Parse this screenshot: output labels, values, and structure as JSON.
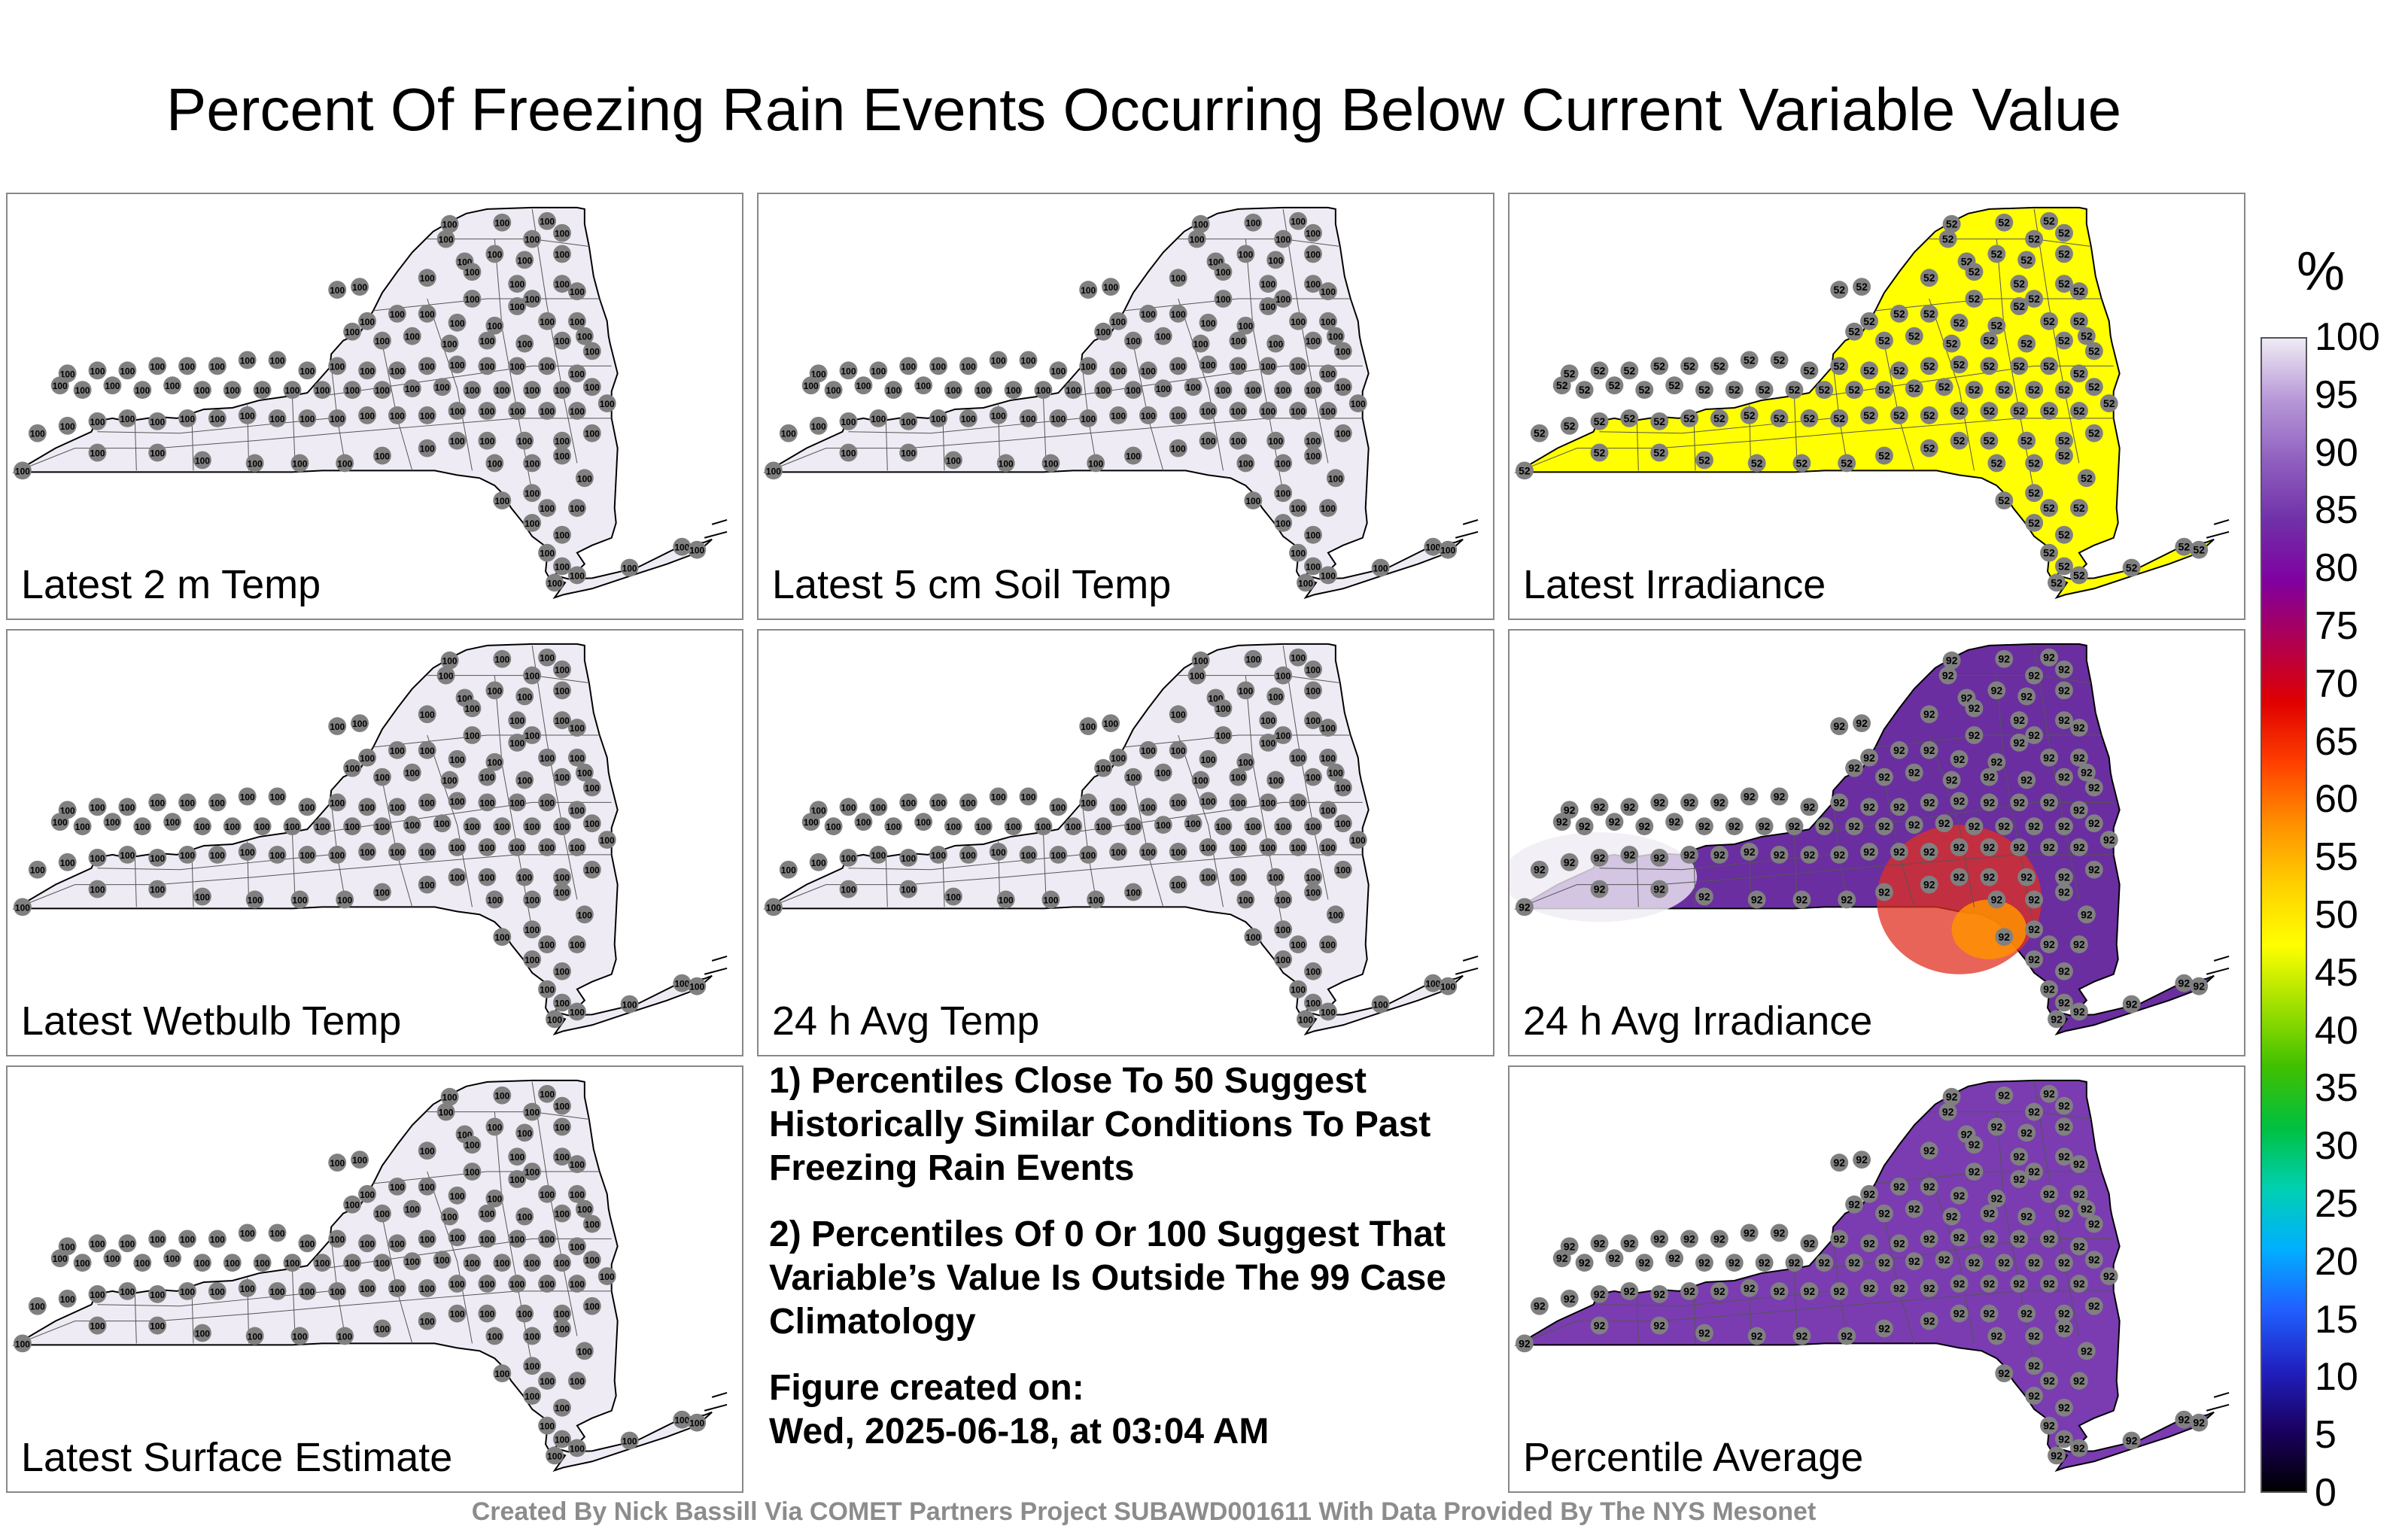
{
  "title": "Percent Of Freezing Rain Events Occurring Below Current Variable Value",
  "panels": [
    {
      "label": "Latest 2 m Temp",
      "fill": "#efebf4",
      "value": "100"
    },
    {
      "label": "Latest 5 cm Soil Temp",
      "fill": "#efebf4",
      "value": "100"
    },
    {
      "label": "Latest Irradiance",
      "fill": "#ffff00",
      "value": "52"
    },
    {
      "label": "Latest Wetbulb Temp",
      "fill": "#efebf4",
      "value": "100"
    },
    {
      "label": "24 h Avg Temp",
      "fill": "#efebf4",
      "value": "100"
    },
    {
      "label": "24 h Avg Irradiance",
      "fill": "#6a2ea0",
      "value": "92"
    },
    {
      "label": "Latest Surface Estimate",
      "fill": "#efebf4",
      "value": "100"
    },
    {
      "label": "Percentile Average",
      "fill": "#7a3cb0",
      "value": "92"
    }
  ],
  "notes": {
    "note1": "1) Percentiles Close To 50 Suggest Historically Similar Conditions To Past Freezing Rain Events",
    "note2": "2) Percentiles Of 0 Or 100 Suggest That Variable’s Value Is Outside The 99 Case Climatology",
    "created_label": "Figure created on:",
    "created_value": "Wed, 2025-06-18, at 03:04 AM"
  },
  "footer": "Created By Nick Bassill Via COMET Partners Project SUBAWD001611 With Data Provided By The NYS Mesonet",
  "colorbar": {
    "unit": "%",
    "ticks": [
      "100",
      "95",
      "90",
      "85",
      "80",
      "75",
      "70",
      "65",
      "60",
      "55",
      "50",
      "45",
      "40",
      "35",
      "30",
      "25",
      "20",
      "15",
      "10",
      "5",
      "0"
    ],
    "colors": [
      "#000000",
      "#1a0060",
      "#2020c0",
      "#2060ff",
      "#00b0ff",
      "#00d0b0",
      "#00c040",
      "#40c000",
      "#a0e000",
      "#ffff00",
      "#ffd000",
      "#ff9000",
      "#ff4000",
      "#e00000",
      "#b00050",
      "#8000a0",
      "#7030a8",
      "#9060c0",
      "#b898d8",
      "#efebf4"
    ]
  }
}
